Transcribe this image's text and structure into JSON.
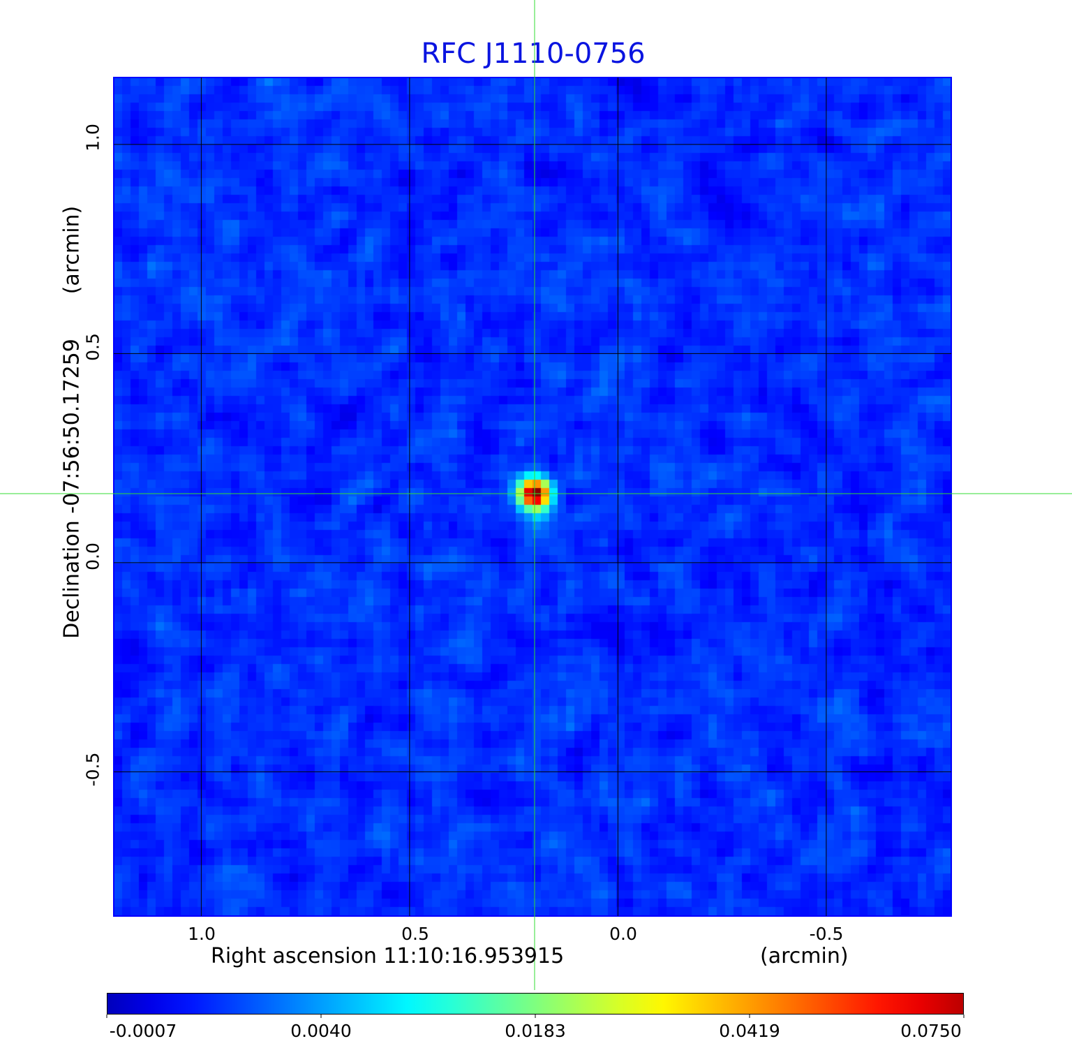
{
  "chart_data": {
    "type": "heatmap",
    "title": "RFC J1110-0756",
    "xlabel": "Right ascension  11:10:16.953915",
    "xunit": "(arcmin)",
    "ylabel": "Declination  -07:56:50.17259",
    "yunit": "(arcmin)",
    "xlim": [
      1.21,
      -0.8
    ],
    "ylim": [
      -0.845,
      1.16
    ],
    "xticks": [
      "1.0",
      "0.5",
      "0.0",
      "-0.5"
    ],
    "xtick_values": [
      1.0,
      0.5,
      0.0,
      -0.5
    ],
    "yticks": [
      "1.0",
      "0.5",
      "0.0",
      "-0.5"
    ],
    "ytick_values": [
      1.0,
      0.5,
      0.0,
      -0.5
    ],
    "grid": true,
    "crosshair": {
      "x": 0.2,
      "y": 0.165,
      "color": "#33dd33"
    },
    "source": {
      "x": 0.2,
      "y": 0.165,
      "peak": 0.075
    },
    "colormap": "jet",
    "colorbar": {
      "ticks": [
        "-0.0007",
        "0.0040",
        "0.0183",
        "0.0419",
        "0.0750"
      ],
      "stops": [
        "#00008f",
        "#0000ff",
        "#00a0ff",
        "#00ffff",
        "#80ff80",
        "#ffff00",
        "#ff8000",
        "#ff0000",
        "#b00000"
      ],
      "placement": "bottom"
    },
    "title_color": "#0a14e0"
  }
}
